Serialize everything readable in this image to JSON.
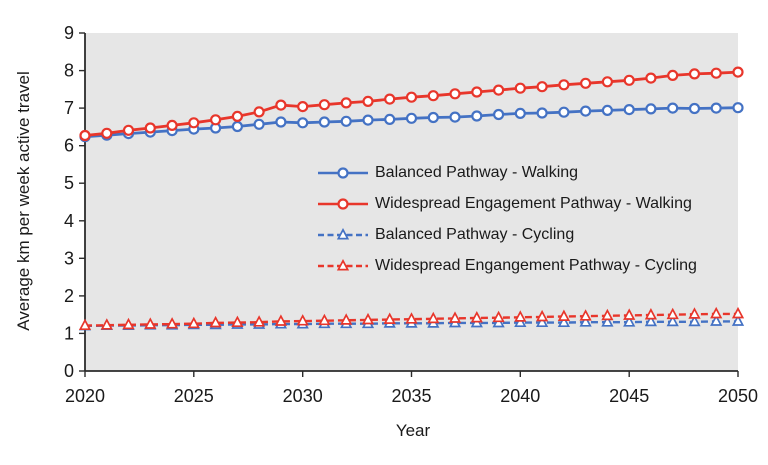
{
  "chart_data": {
    "type": "line",
    "title": "",
    "xlabel": "Year",
    "ylabel": "Average km per week active travel",
    "xlim": [
      2020,
      2050
    ],
    "ylim": [
      0,
      9
    ],
    "x_ticks": [
      2020,
      2025,
      2030,
      2035,
      2040,
      2045,
      2050
    ],
    "y_ticks": [
      0,
      1,
      2,
      3,
      4,
      5,
      6,
      7,
      8,
      9
    ],
    "grid": false,
    "legend_position": "inside-middle-right",
    "plot_background": "#e6e6e6",
    "axis_color": "#2b2b2b",
    "text_color": "#1a1a1a",
    "x": [
      2020,
      2021,
      2022,
      2023,
      2024,
      2025,
      2026,
      2027,
      2028,
      2029,
      2030,
      2031,
      2032,
      2033,
      2034,
      2035,
      2036,
      2037,
      2038,
      2039,
      2040,
      2041,
      2042,
      2043,
      2044,
      2045,
      2046,
      2047,
      2048,
      2049,
      2050
    ],
    "series": [
      {
        "name": "Balanced Pathway - Walking",
        "color": "#4472c4",
        "line": "solid",
        "marker": "circle",
        "values": [
          6.24,
          6.28,
          6.32,
          6.36,
          6.4,
          6.44,
          6.47,
          6.51,
          6.57,
          6.63,
          6.61,
          6.63,
          6.65,
          6.68,
          6.7,
          6.73,
          6.75,
          6.76,
          6.79,
          6.83,
          6.86,
          6.87,
          6.89,
          6.92,
          6.94,
          6.96,
          6.98,
          7.0,
          6.99,
          7.0,
          7.01
        ]
      },
      {
        "name": "Widespread Engagement Pathway - Walking",
        "color": "#e8362b",
        "line": "solid",
        "marker": "circle",
        "values": [
          6.27,
          6.33,
          6.41,
          6.47,
          6.54,
          6.61,
          6.69,
          6.78,
          6.9,
          7.08,
          7.04,
          7.09,
          7.14,
          7.18,
          7.24,
          7.29,
          7.33,
          7.38,
          7.43,
          7.48,
          7.53,
          7.57,
          7.62,
          7.66,
          7.7,
          7.74,
          7.8,
          7.87,
          7.91,
          7.93,
          7.96
        ]
      },
      {
        "name": "Balanced Pathway - Cycling",
        "color": "#4472c4",
        "line": "dashed",
        "marker": "triangle",
        "values": [
          1.2,
          1.21,
          1.21,
          1.22,
          1.22,
          1.23,
          1.23,
          1.24,
          1.24,
          1.25,
          1.25,
          1.26,
          1.26,
          1.26,
          1.27,
          1.27,
          1.27,
          1.28,
          1.28,
          1.28,
          1.29,
          1.29,
          1.29,
          1.3,
          1.3,
          1.3,
          1.31,
          1.31,
          1.31,
          1.32,
          1.32
        ]
      },
      {
        "name": "Widespread Engangement Pathway - Cycling",
        "color": "#e8362b",
        "line": "dashed",
        "marker": "triangle",
        "values": [
          1.21,
          1.22,
          1.23,
          1.24,
          1.25,
          1.26,
          1.28,
          1.29,
          1.3,
          1.32,
          1.33,
          1.34,
          1.35,
          1.36,
          1.37,
          1.38,
          1.39,
          1.4,
          1.41,
          1.42,
          1.43,
          1.44,
          1.45,
          1.46,
          1.47,
          1.48,
          1.49,
          1.5,
          1.51,
          1.52,
          1.52
        ]
      }
    ]
  }
}
